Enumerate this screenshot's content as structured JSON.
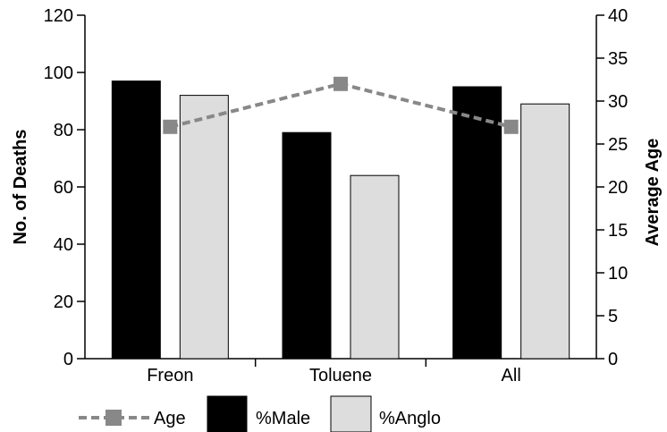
{
  "chart_data": {
    "type": "bar",
    "categories": [
      "Freon",
      "Toluene",
      "All"
    ],
    "series": [
      {
        "name": "%Male",
        "type": "bar",
        "axis": "left",
        "values": [
          97,
          79,
          95
        ],
        "color": "#000000"
      },
      {
        "name": "%Anglo",
        "type": "bar",
        "axis": "left",
        "values": [
          92,
          64,
          89
        ],
        "color": "#dddddd"
      },
      {
        "name": "Age",
        "type": "line",
        "axis": "right",
        "values": [
          27,
          32,
          27
        ],
        "color": "#888888",
        "line_style": "dashed",
        "marker": "square"
      }
    ],
    "ylabel": "No. of Deaths",
    "ylim": [
      0,
      120
    ],
    "yticks": [
      "0",
      "20",
      "40",
      "60",
      "80",
      "100",
      "120"
    ],
    "y2label": "Average Age",
    "y2lim": [
      0,
      40
    ],
    "y2ticks": [
      "0",
      "5",
      "10",
      "15",
      "20",
      "25",
      "30",
      "35",
      "40"
    ],
    "legend_position": "bottom",
    "legend": [
      "Age",
      "%Male",
      "%Anglo"
    ],
    "grid": false
  }
}
